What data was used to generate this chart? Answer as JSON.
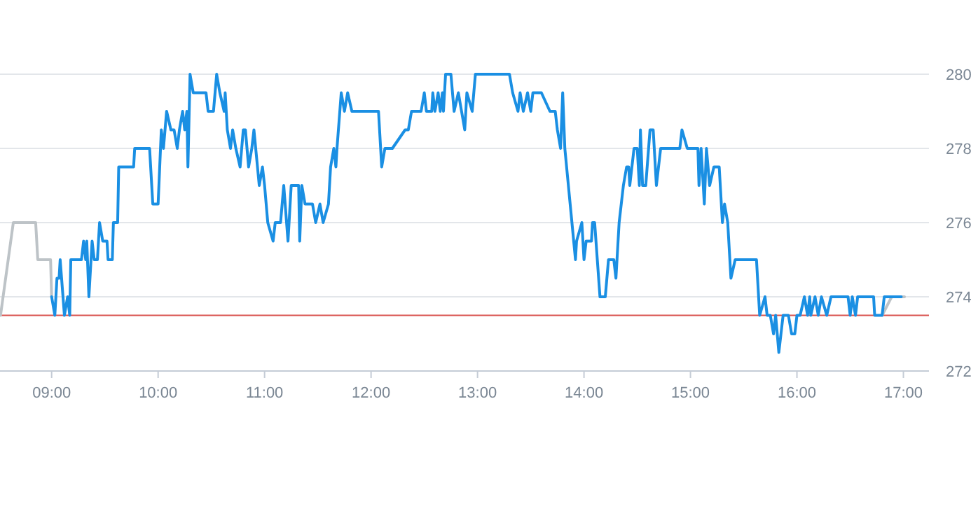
{
  "chart_data": {
    "type": "line",
    "xlim": [
      8.515,
      17.24
    ],
    "ylim": [
      272,
      280
    ],
    "xticks": [
      {
        "value": 9,
        "label": "09:00"
      },
      {
        "value": 10,
        "label": "10:00"
      },
      {
        "value": 11,
        "label": "11:00"
      },
      {
        "value": 12,
        "label": "12:00"
      },
      {
        "value": 13,
        "label": "13:00"
      },
      {
        "value": 14,
        "label": "14:00"
      },
      {
        "value": 15,
        "label": "15:00"
      },
      {
        "value": 16,
        "label": "16:00"
      },
      {
        "value": 17,
        "label": "17:00"
      }
    ],
    "yticks": [
      272,
      274,
      276,
      278,
      280
    ],
    "grid": "y",
    "marker": "none",
    "line_style": "solid",
    "ref_lines": [
      {
        "axis": "y",
        "value": 273.5,
        "color": "#d9534f"
      }
    ],
    "series": [
      {
        "color": "#bdc3c7",
        "x": [
          8.52,
          8.64,
          8.85,
          8.87,
          8.99,
          9.0
        ],
        "values": [
          273.5,
          276,
          276,
          275,
          275,
          274
        ]
      },
      {
        "color": "#bdc3c7",
        "x": [
          16.8,
          16.89,
          17.01
        ],
        "values": [
          273.5,
          274,
          274
        ]
      },
      {
        "color": "#1a8fe3",
        "x": [
          9.0,
          9.03,
          9.05,
          9.07,
          9.08,
          9.12,
          9.15,
          9.17,
          9.18,
          9.28,
          9.3,
          9.32,
          9.33,
          9.35,
          9.38,
          9.4,
          9.43,
          9.45,
          9.48,
          9.52,
          9.53,
          9.57,
          9.58,
          9.62,
          9.63,
          9.77,
          9.78,
          9.92,
          9.95,
          10.0,
          10.03,
          10.05,
          10.08,
          10.12,
          10.15,
          10.18,
          10.2,
          10.23,
          10.25,
          10.27,
          10.28,
          10.3,
          10.33,
          10.45,
          10.47,
          10.52,
          10.55,
          10.58,
          10.62,
          10.63,
          10.65,
          10.68,
          10.7,
          10.73,
          10.77,
          10.8,
          10.82,
          10.85,
          10.88,
          10.9,
          10.95,
          10.98,
          11.0,
          11.03,
          11.08,
          11.1,
          11.15,
          11.18,
          11.22,
          11.25,
          11.32,
          11.33,
          11.35,
          11.38,
          11.45,
          11.48,
          11.52,
          11.55,
          11.6,
          11.62,
          11.65,
          11.67,
          11.68,
          11.72,
          11.75,
          11.78,
          11.82,
          12.07,
          12.1,
          12.13,
          12.2,
          12.32,
          12.35,
          12.38,
          12.47,
          12.5,
          12.52,
          12.57,
          12.58,
          12.6,
          12.63,
          12.65,
          12.67,
          12.68,
          12.7,
          12.75,
          12.78,
          12.82,
          12.85,
          12.88,
          12.9,
          12.95,
          12.98,
          13.3,
          13.33,
          13.38,
          13.4,
          13.43,
          13.47,
          13.5,
          13.52,
          13.6,
          13.68,
          13.73,
          13.75,
          13.78,
          13.8,
          13.82,
          13.87,
          13.92,
          13.93,
          13.98,
          14.0,
          14.02,
          14.07,
          14.08,
          14.1,
          14.15,
          14.2,
          14.23,
          14.28,
          14.3,
          14.33,
          14.35,
          14.37,
          14.4,
          14.42,
          14.43,
          14.47,
          14.5,
          14.52,
          14.53,
          14.55,
          14.58,
          14.62,
          14.65,
          14.68,
          14.72,
          14.9,
          14.92,
          14.97,
          15.07,
          15.08,
          15.1,
          15.13,
          15.15,
          15.18,
          15.22,
          15.27,
          15.3,
          15.32,
          15.35,
          15.38,
          15.42,
          15.62,
          15.65,
          15.7,
          15.72,
          15.75,
          15.78,
          15.8,
          15.83,
          15.87,
          15.92,
          15.95,
          15.98,
          16.0,
          16.03,
          16.07,
          16.1,
          16.12,
          16.13,
          16.17,
          16.2,
          16.23,
          16.28,
          16.32,
          16.48,
          16.5,
          16.52,
          16.55,
          16.57,
          16.72,
          16.73,
          16.8,
          16.82,
          16.98
        ],
        "values": [
          274,
          273.5,
          274.5,
          274.5,
          275,
          273.5,
          274,
          273.5,
          275,
          275,
          275.5,
          275,
          275.5,
          274,
          275.5,
          275,
          275,
          276,
          275.5,
          275.5,
          275,
          275,
          276,
          276,
          277.5,
          277.5,
          278,
          278,
          276.5,
          276.5,
          278.5,
          278,
          279,
          278.5,
          278.5,
          278,
          278.5,
          279,
          278.5,
          279,
          277.5,
          280,
          279.5,
          279.5,
          279,
          279,
          280,
          279.5,
          279,
          279.5,
          278.5,
          278,
          278.5,
          278,
          277.5,
          278.5,
          278.5,
          277.5,
          278,
          278.5,
          277,
          277.5,
          277,
          276,
          275.5,
          276,
          276,
          277,
          275.5,
          277,
          277,
          275.5,
          277,
          276.5,
          276.5,
          276,
          276.5,
          276,
          276.5,
          277.5,
          278,
          277.5,
          278,
          279.5,
          279,
          279.5,
          279,
          279,
          277.5,
          278,
          278,
          278.5,
          278.5,
          279,
          279,
          279.5,
          279,
          279,
          279.5,
          279,
          279.5,
          279,
          279.5,
          279,
          280,
          280,
          279,
          279.5,
          279,
          278.5,
          279.5,
          279,
          280,
          280,
          279.5,
          279,
          279.5,
          279,
          279.5,
          279,
          279.5,
          279.5,
          279,
          279,
          278.5,
          278,
          279.5,
          278,
          276.5,
          275,
          275.5,
          276,
          275,
          275.5,
          275.5,
          276,
          276,
          274,
          274,
          275,
          275,
          274.5,
          276,
          276.5,
          277,
          277.5,
          277.5,
          277,
          278,
          278,
          277,
          278.5,
          277,
          277,
          278.5,
          278.5,
          277,
          278,
          278,
          278.5,
          278,
          278,
          277,
          278,
          276.5,
          278,
          277,
          277.5,
          277.5,
          276,
          276.5,
          276,
          274.5,
          275,
          275,
          273.5,
          274,
          273.5,
          273.5,
          273,
          273.5,
          272.5,
          273.5,
          273.5,
          273,
          273,
          273.5,
          273.5,
          274,
          273.5,
          274,
          273.5,
          274,
          273.5,
          274,
          273.5,
          274,
          274,
          273.5,
          274,
          273.5,
          274,
          274,
          273.5,
          273.5,
          274,
          274
        ]
      }
    ]
  }
}
